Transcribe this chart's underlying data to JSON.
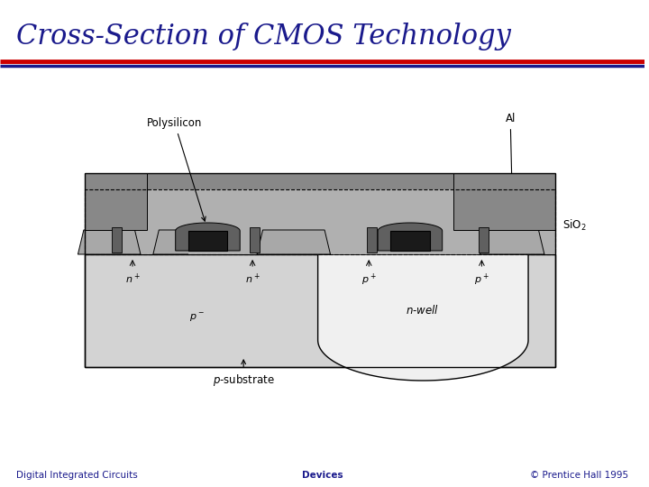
{
  "title": "Cross-Section of CMOS Technology",
  "title_color": "#1a1a8c",
  "title_fontsize": 22,
  "footer_left": "Digital Integrated Circuits",
  "footer_center": "Devices",
  "footer_right": "© Prentice Hall 1995",
  "footer_color": "#1a1a8c",
  "sep_red": "#cc0000",
  "sep_blue": "#1a1a8c",
  "bg_color": "#ffffff",
  "c_sub": "#d3d3d3",
  "c_nwell": "#f0f0f0",
  "c_sio2": "#b0b0b0",
  "c_poly": "#1a1a1a",
  "c_metal": "#888888",
  "c_darkgray": "#606060",
  "c_black": "#000000",
  "c_white": "#ffffff",
  "c_foxside": "#a8a8a8"
}
